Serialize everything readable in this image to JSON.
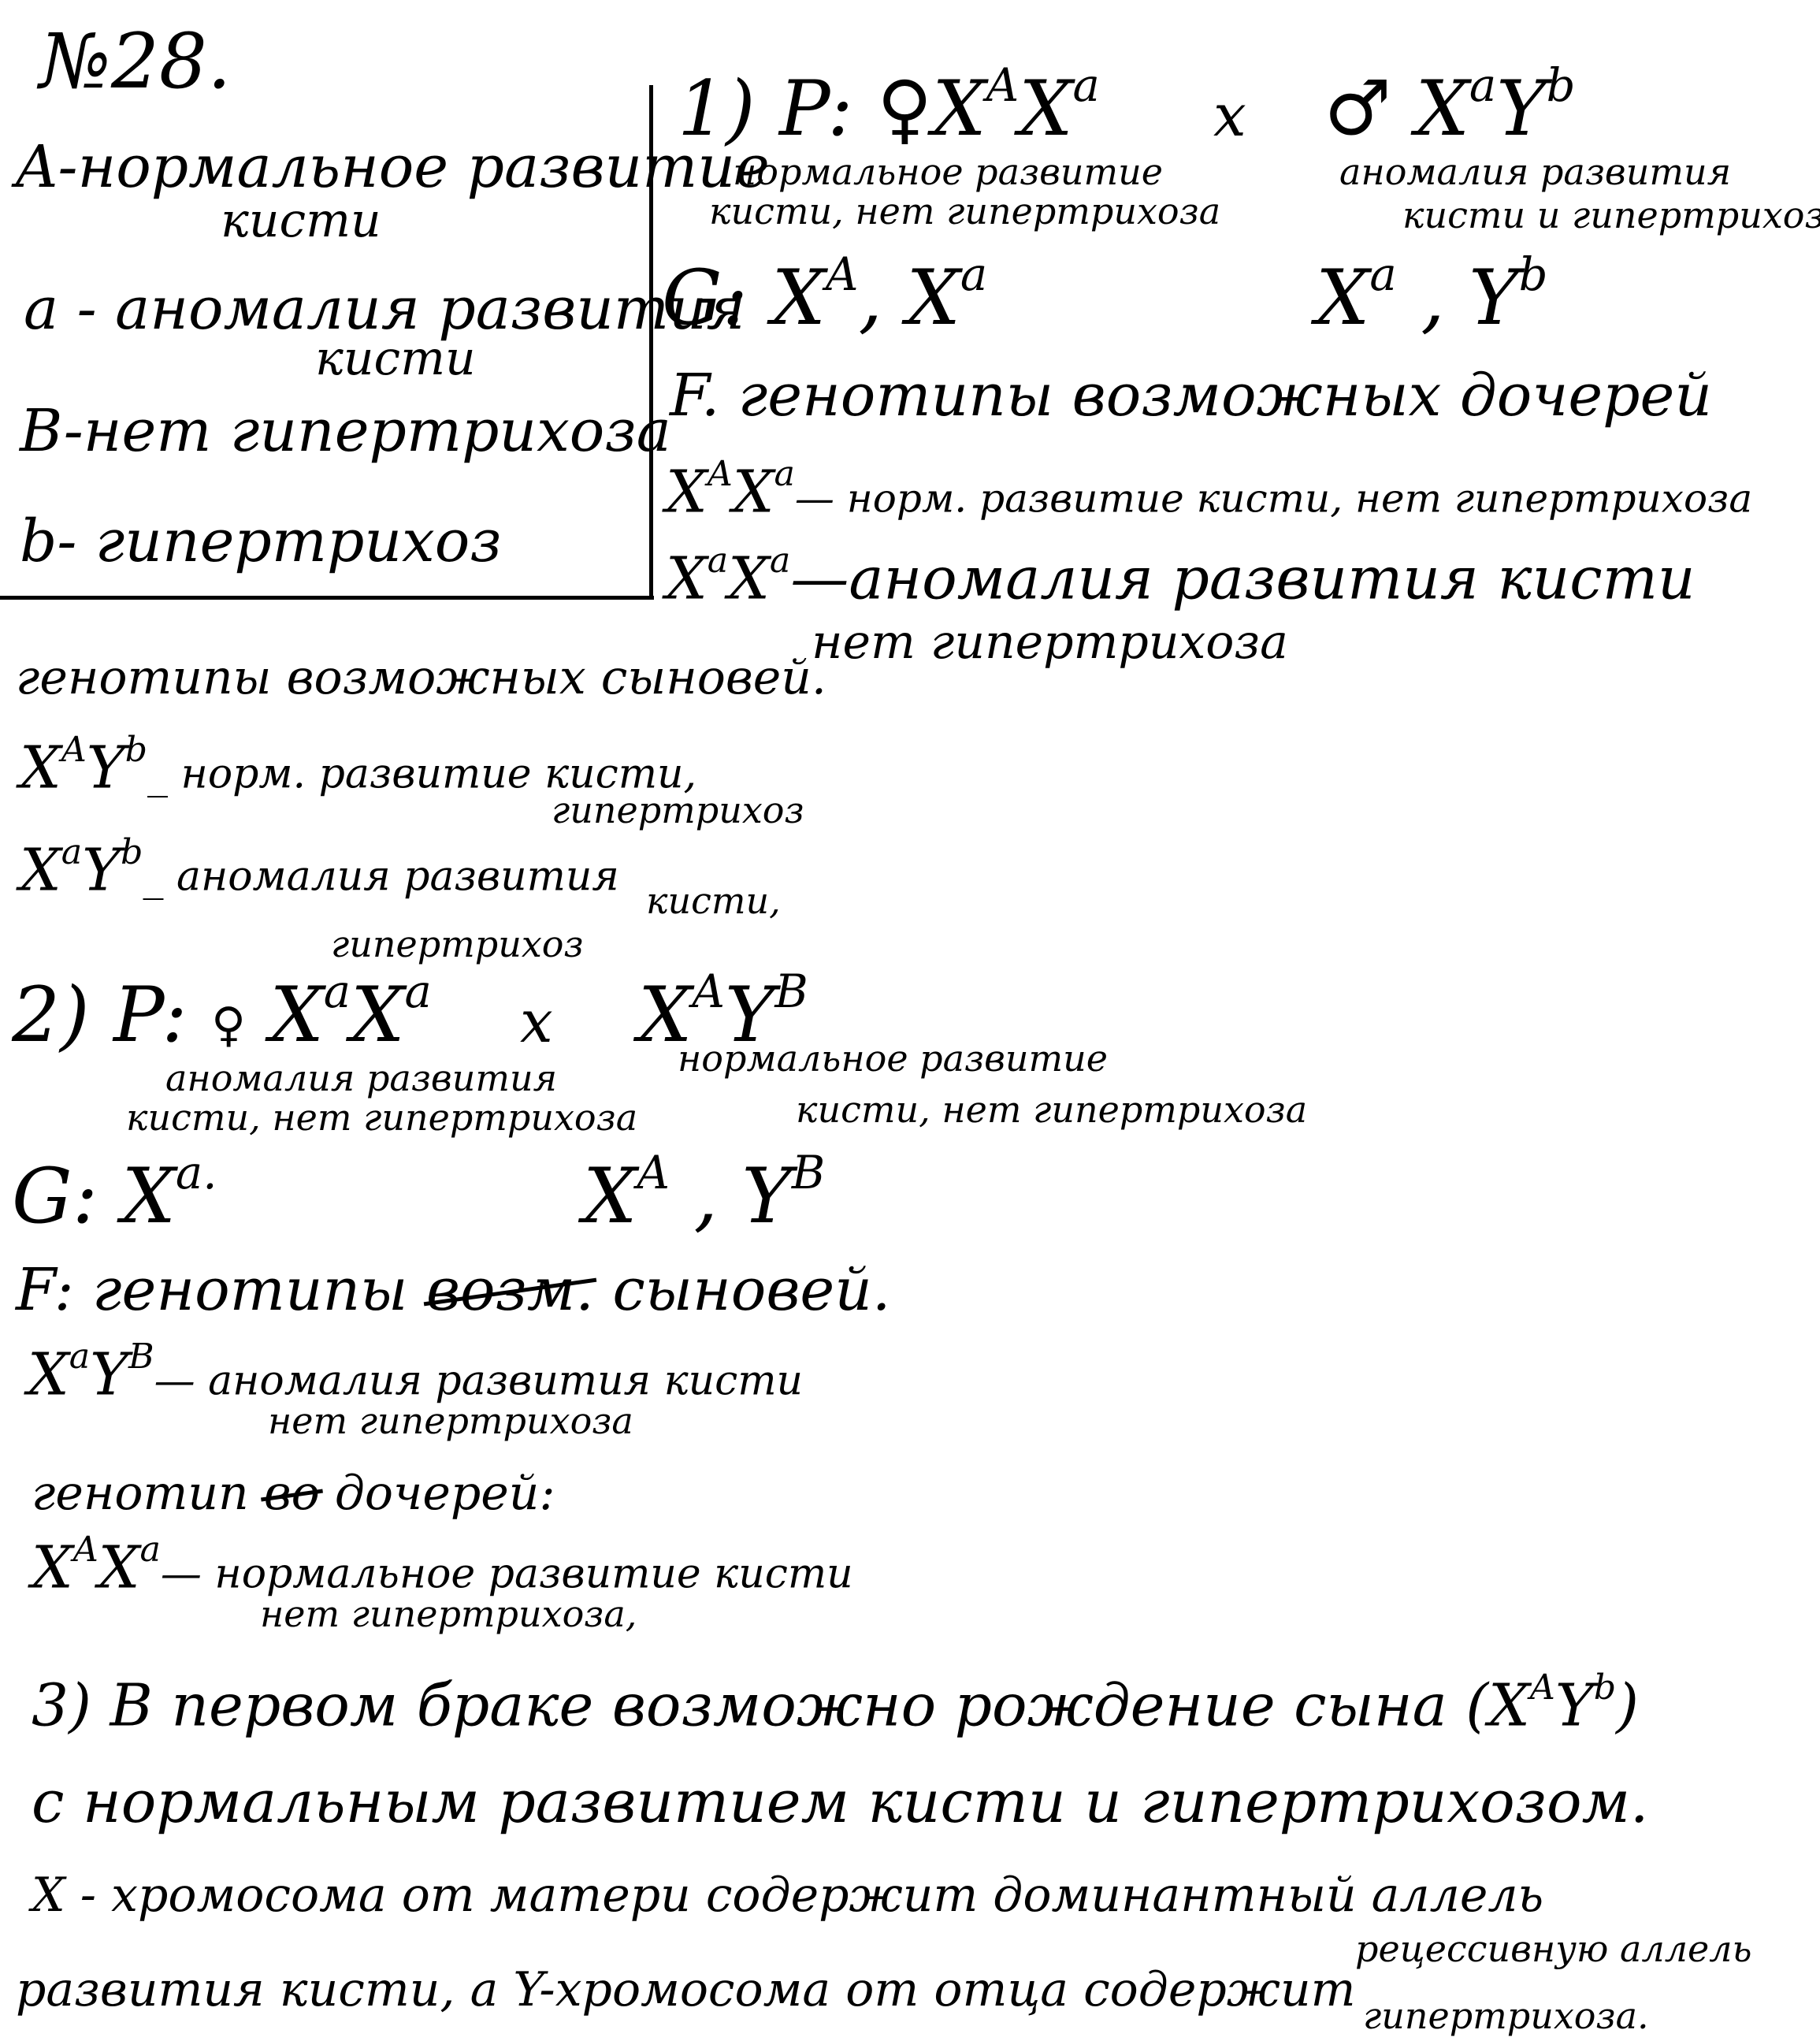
{
  "task_number": "№28.",
  "legend": {
    "A_line1": "A-нормальное развитие",
    "A_line2": "кисти",
    "a_line1": "a - аномалия развития",
    "a_line2": "кисти",
    "B": "B-нет гипертрихоза",
    "b": "b- гипертрихоз"
  },
  "cross1": {
    "p_label": "1) P: ♀",
    "mother_g1": "X",
    "mother_a1": "A",
    "mother_g2": "X",
    "mother_a2": "a",
    "cross_sign": "x",
    "father_prefix": "♂",
    "father_g1": "X",
    "father_a1": "a",
    "father_g2": "Y",
    "father_a2": "b",
    "mother_pheno_1": "нормальное развитие",
    "mother_pheno_2": "кисти, нет гипертрихоза",
    "father_pheno_1": "аномалия развития",
    "father_pheno_2": "кисти и гипертрихоз.",
    "gametes_label": "G:",
    "g_m1": "X",
    "g_m1_a": "A",
    "g_m2": "X",
    "g_m2_a": "a",
    "g_f1": "X",
    "g_f1_a": "a",
    "g_f2": "Y",
    "g_f2_a": "b",
    "f_line": "F. генотипы возможных дочерей",
    "d1_g": "X",
    "d1_a": "A",
    "d1_g2": "X",
    "d1_a2": "a",
    "d1_text": "— норм. развитие кисти, нет гипертрихоза",
    "d2_g": "X",
    "d2_a": "a",
    "d2_g2": "X",
    "d2_a2": "a",
    "d2_text": "—аномалия развития кисти",
    "d2_text2": "нет гипертрихоза",
    "sons_label": "генотипы возможных сыновей.",
    "s1_g": "X",
    "s1_a": "A",
    "s1_g2": "Y",
    "s1_a2": "b",
    "s1_text": "_ норм. развитие кисти,",
    "s1_text2": "гипертрихоз",
    "s2_g": "X",
    "s2_a": "a",
    "s2_g2": "Y",
    "s2_a2": "b",
    "s2_text": "_ аномалия развития",
    "s2_text2": "кисти,",
    "s2_text3": "гипертрихоз"
  },
  "cross2": {
    "p_label": "2) P:",
    "female_sign": "♀",
    "m_g1": "X",
    "m_a1": "a",
    "m_g2": "X",
    "m_a2": "a",
    "cross_sign": "x",
    "f_g1": "X",
    "f_a1": "A",
    "f_g2": "Y",
    "f_a2": "B",
    "m_pheno_1": "аномалия развития",
    "m_pheno_2": "кисти, нет гипертрихоза",
    "f_pheno_1": "нормальное развитие",
    "f_pheno_2": "кисти, нет гипертрихоза",
    "gametes_label": "G:",
    "g_m": "X",
    "g_m_a": "a.",
    "g_f1": "X",
    "g_f1_a": "A",
    "g_f2": "Y",
    "g_f2_a": "B",
    "f_line_a": "F: генотипы",
    "f_line_struck": "возм.",
    "f_line_b": "сыновей.",
    "son_g": "X",
    "son_a": "a",
    "son_g2": "Y",
    "son_a2": "B",
    "son_text": "— аномалия развития кисти",
    "son_text2": "нет гипертрихоза",
    "dau_label_a": "генотип",
    "dau_label_struck": "во",
    "dau_label_b": "дочерей:",
    "dau_g": "X",
    "dau_a": "A",
    "dau_g2": "X",
    "dau_a2": "a",
    "dau_text": "— нормальное развитие кисти",
    "dau_text2": "нет гипертрихоза,"
  },
  "conclusion": {
    "line1": "3) В первом браке возможно рождение сына (X",
    "line1_sup1": "A",
    "line1_mid": "Y",
    "line1_sup2": "b",
    "line1_end": ")",
    "line2": "с нормальным развитием кисти и гипертрихозом.",
    "line3": "X - хромосома от матери содержит доминантный аллель",
    "line4": "развития кисти, а Y-хромосома от отца содержит",
    "line4_above": "рецессивную аллель",
    "line4_below": "гипертрихоза."
  }
}
